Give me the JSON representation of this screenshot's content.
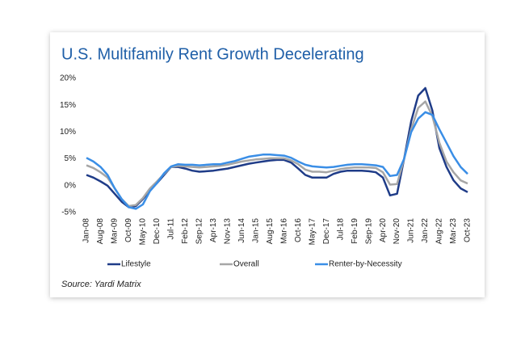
{
  "chart_data": {
    "type": "line",
    "title": "U.S. Multifamily Rent Growth Decelerating",
    "source": "Source: Yardi Matrix",
    "categories": [
      "Jan-08",
      null,
      "Aug-08",
      null,
      "Mar-09",
      null,
      "Oct-09",
      null,
      "May-10",
      null,
      "Dec-10",
      null,
      "Jul-11",
      null,
      "Feb-12",
      null,
      "Sep-12",
      null,
      "Apr-13",
      null,
      "Nov-13",
      null,
      "Jun-14",
      null,
      "Jan-15",
      null,
      "Aug-15",
      null,
      "Mar-16",
      null,
      "Oct-16",
      null,
      "May-17",
      null,
      "Dec-17",
      null,
      "Jul-18",
      null,
      "Feb-19",
      null,
      "Sep-19",
      null,
      "Apr-20",
      null,
      "Nov-20",
      null,
      "Jun-21",
      null,
      "Jan-22",
      null,
      "Aug-22",
      null,
      "Mar-23",
      null,
      "Oct-23"
    ],
    "series": [
      {
        "name": "Lifestyle",
        "color": "#1f3c88",
        "values": [
          2.0,
          1.5,
          0.8,
          0,
          -1.5,
          -3,
          -4,
          -3.8,
          -2.5,
          -0.8,
          0.5,
          2,
          3.5,
          3.5,
          3.2,
          2.8,
          2.6,
          2.7,
          2.8,
          3.0,
          3.2,
          3.5,
          3.8,
          4.1,
          4.3,
          4.5,
          4.7,
          4.8,
          4.8,
          4.3,
          3.2,
          2.0,
          1.5,
          1.5,
          1.5,
          2.2,
          2.6,
          2.8,
          2.8,
          2.8,
          2.7,
          2.5,
          1.5,
          -1.8,
          -1.5,
          5,
          12,
          16.8,
          18.2,
          14,
          7,
          3.5,
          1,
          -0.5,
          -1.2
        ]
      },
      {
        "name": "Overall",
        "color": "#a6a6a6",
        "values": [
          3.8,
          3.3,
          2.5,
          1.5,
          -0.5,
          -2.5,
          -3.8,
          -3.6,
          -2.3,
          -0.5,
          0.8,
          2.2,
          3.5,
          3.7,
          3.6,
          3.5,
          3.4,
          3.5,
          3.6,
          3.7,
          3.9,
          4.2,
          4.5,
          4.7,
          4.9,
          5.0,
          5.1,
          5.1,
          5.1,
          4.7,
          4.0,
          3.0,
          2.6,
          2.6,
          2.5,
          2.8,
          3.1,
          3.3,
          3.4,
          3.4,
          3.4,
          3.3,
          2.5,
          0.2,
          0.3,
          5,
          10.5,
          14.5,
          15.7,
          13,
          8,
          4.5,
          2.5,
          1.0,
          0.4
        ]
      },
      {
        "name": "Renter-by-Necessity",
        "color": "#3a8ee6",
        "values": [
          5.2,
          4.5,
          3.5,
          2,
          -0.5,
          -2.5,
          -4,
          -4.3,
          -3.5,
          -1,
          0.5,
          2.3,
          3.6,
          4.0,
          3.9,
          3.9,
          3.8,
          3.9,
          4.0,
          4.0,
          4.3,
          4.6,
          5.0,
          5.4,
          5.6,
          5.8,
          5.8,
          5.7,
          5.6,
          5.2,
          4.5,
          3.9,
          3.6,
          3.5,
          3.4,
          3.5,
          3.7,
          3.9,
          4.0,
          4.0,
          3.9,
          3.8,
          3.5,
          1.8,
          2.0,
          5,
          10,
          12.5,
          13.7,
          13.2,
          10.5,
          8,
          5.5,
          3.5,
          2.2
        ]
      }
    ],
    "ylim": [
      -5,
      20
    ],
    "yticks": [
      {
        "value": -5,
        "label": "-5%"
      },
      {
        "value": 0,
        "label": "0%"
      },
      {
        "value": 5,
        "label": "5%"
      },
      {
        "value": 10,
        "label": "10%"
      },
      {
        "value": 15,
        "label": "15%"
      },
      {
        "value": 20,
        "label": "20%"
      }
    ],
    "grid": false
  }
}
